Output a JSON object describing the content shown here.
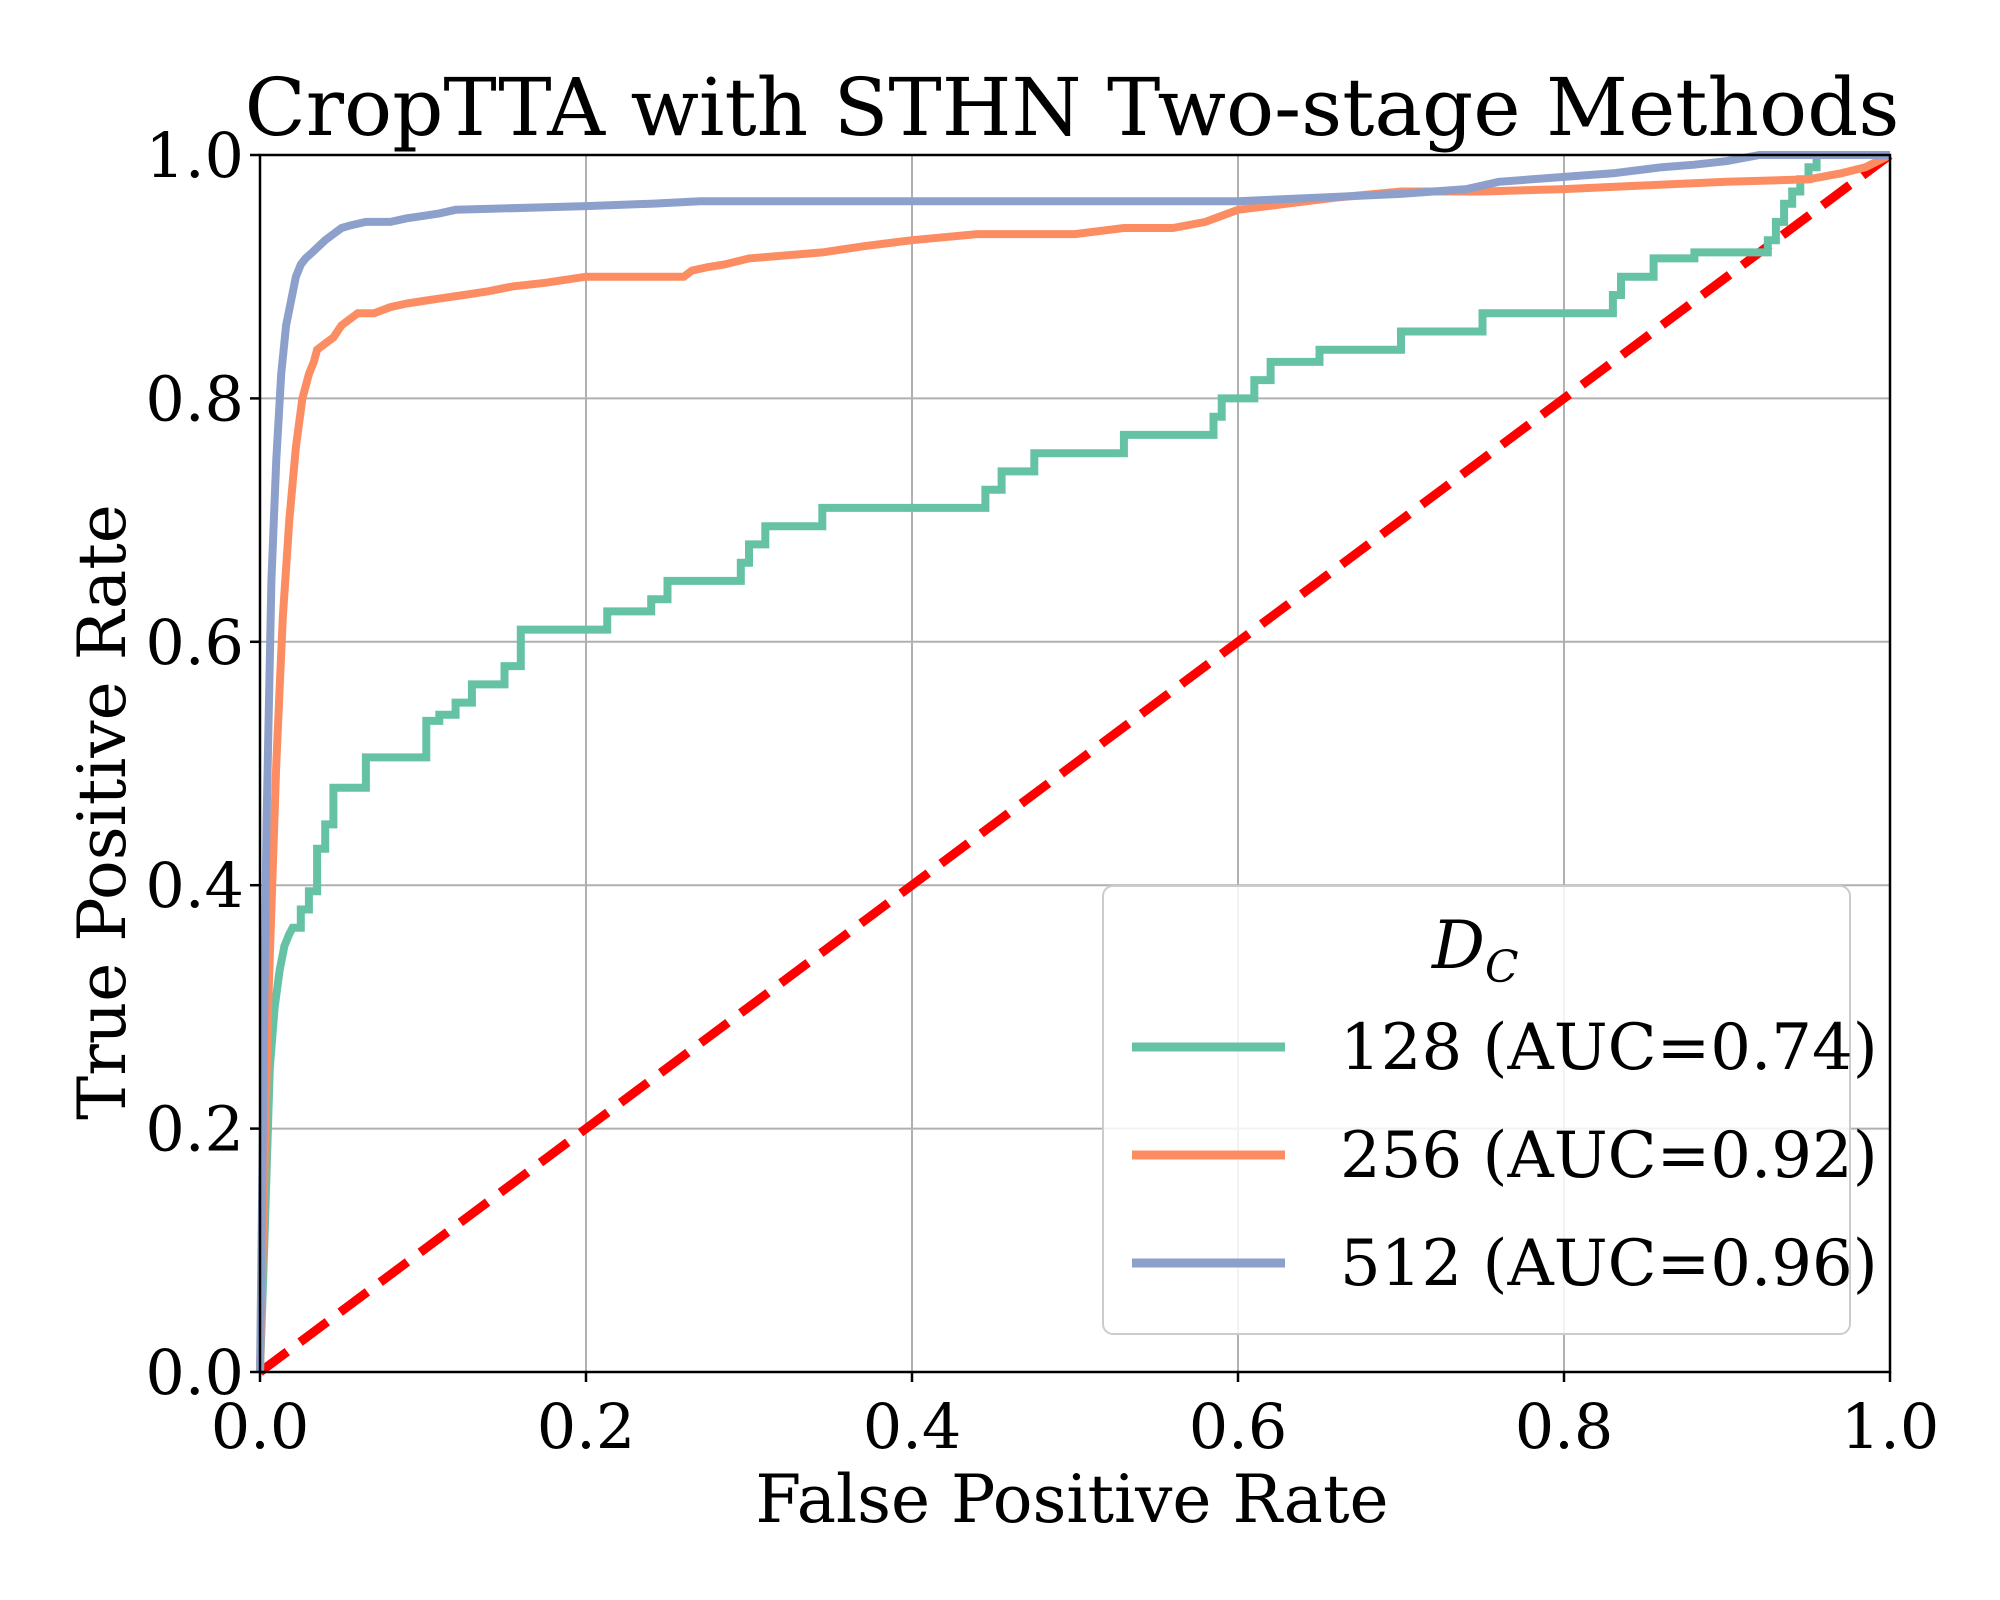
{
  "chart_data": {
    "type": "line",
    "title": "CropTTA with STHN Two-stage Methods",
    "xlabel": "False Positive Rate",
    "ylabel": "True Positive Rate",
    "xlim": [
      0.0,
      1.0
    ],
    "ylim": [
      0.0,
      1.0
    ],
    "xticks": [
      "0.0",
      "0.2",
      "0.4",
      "0.6",
      "0.8",
      "1.0"
    ],
    "yticks": [
      "0.0",
      "0.2",
      "0.4",
      "0.6",
      "0.8",
      "1.0"
    ],
    "grid": true,
    "legend": {
      "title_main": "D",
      "title_sub": "C",
      "placement": "lower-right"
    },
    "series": [
      {
        "name": "128 (AUC=0.74)",
        "color": "#66c2a5",
        "x": [
          0.0,
          0.003,
          0.006,
          0.009,
          0.012,
          0.015,
          0.018,
          0.02,
          0.025,
          0.025,
          0.03,
          0.03,
          0.035,
          0.035,
          0.04,
          0.04,
          0.045,
          0.045,
          0.065,
          0.065,
          0.102,
          0.102,
          0.11,
          0.11,
          0.12,
          0.12,
          0.13,
          0.13,
          0.15,
          0.15,
          0.16,
          0.16,
          0.213,
          0.213,
          0.24,
          0.24,
          0.25,
          0.25,
          0.295,
          0.295,
          0.3,
          0.3,
          0.31,
          0.31,
          0.345,
          0.345,
          0.445,
          0.445,
          0.455,
          0.455,
          0.475,
          0.475,
          0.53,
          0.53,
          0.585,
          0.585,
          0.59,
          0.59,
          0.61,
          0.61,
          0.62,
          0.62,
          0.65,
          0.65,
          0.7,
          0.7,
          0.75,
          0.75,
          0.83,
          0.83,
          0.835,
          0.835,
          0.855,
          0.855,
          0.88,
          0.88,
          0.925,
          0.925,
          0.93,
          0.93,
          0.935,
          0.935,
          0.94,
          0.94,
          0.945,
          0.945,
          0.95,
          0.95,
          0.955,
          0.955,
          1.0
        ],
        "y": [
          0.0,
          0.12,
          0.25,
          0.3,
          0.33,
          0.35,
          0.36,
          0.365,
          0.365,
          0.38,
          0.38,
          0.395,
          0.395,
          0.43,
          0.43,
          0.45,
          0.45,
          0.48,
          0.48,
          0.505,
          0.505,
          0.535,
          0.535,
          0.54,
          0.54,
          0.55,
          0.55,
          0.565,
          0.565,
          0.58,
          0.58,
          0.61,
          0.61,
          0.625,
          0.625,
          0.635,
          0.635,
          0.65,
          0.65,
          0.665,
          0.665,
          0.68,
          0.68,
          0.695,
          0.695,
          0.71,
          0.71,
          0.725,
          0.725,
          0.74,
          0.74,
          0.755,
          0.755,
          0.77,
          0.77,
          0.785,
          0.785,
          0.8,
          0.8,
          0.815,
          0.815,
          0.83,
          0.83,
          0.84,
          0.84,
          0.855,
          0.855,
          0.87,
          0.87,
          0.885,
          0.885,
          0.9,
          0.9,
          0.915,
          0.915,
          0.92,
          0.92,
          0.93,
          0.93,
          0.945,
          0.945,
          0.96,
          0.96,
          0.97,
          0.97,
          0.98,
          0.98,
          0.99,
          0.99,
          1.0,
          1.0
        ]
      },
      {
        "name": "256 (AUC=0.92)",
        "color": "#fc8d62",
        "x": [
          0.0,
          0.005,
          0.01,
          0.014,
          0.018,
          0.022,
          0.026,
          0.03,
          0.033,
          0.035,
          0.04,
          0.045,
          0.05,
          0.055,
          0.06,
          0.07,
          0.08,
          0.09,
          0.1,
          0.11,
          0.125,
          0.14,
          0.155,
          0.175,
          0.2,
          0.225,
          0.26,
          0.265,
          0.275,
          0.285,
          0.3,
          0.345,
          0.37,
          0.4,
          0.44,
          0.5,
          0.53,
          0.56,
          0.58,
          0.6,
          0.63,
          0.66,
          0.7,
          0.75,
          0.8,
          0.85,
          0.9,
          0.95,
          0.97,
          0.985,
          1.0
        ],
        "y": [
          0.0,
          0.3,
          0.5,
          0.62,
          0.7,
          0.76,
          0.8,
          0.82,
          0.83,
          0.84,
          0.845,
          0.85,
          0.86,
          0.865,
          0.87,
          0.87,
          0.875,
          0.878,
          0.88,
          0.882,
          0.885,
          0.888,
          0.892,
          0.895,
          0.9,
          0.9,
          0.9,
          0.905,
          0.908,
          0.91,
          0.915,
          0.92,
          0.925,
          0.93,
          0.935,
          0.935,
          0.94,
          0.94,
          0.945,
          0.955,
          0.96,
          0.965,
          0.97,
          0.97,
          0.972,
          0.975,
          0.978,
          0.98,
          0.985,
          0.99,
          1.0
        ]
      },
      {
        "name": "512 (AUC=0.96)",
        "color": "#8da0cb",
        "x": [
          0.0,
          0.004,
          0.007,
          0.01,
          0.013,
          0.016,
          0.019,
          0.022,
          0.025,
          0.028,
          0.032,
          0.036,
          0.04,
          0.045,
          0.05,
          0.055,
          0.065,
          0.08,
          0.09,
          0.1,
          0.11,
          0.12,
          0.2,
          0.24,
          0.27,
          0.4,
          0.55,
          0.6,
          0.65,
          0.7,
          0.74,
          0.76,
          0.8,
          0.83,
          0.86,
          0.88,
          0.9,
          0.92,
          1.0
        ],
        "y": [
          0.0,
          0.45,
          0.65,
          0.75,
          0.82,
          0.86,
          0.88,
          0.9,
          0.91,
          0.915,
          0.92,
          0.925,
          0.93,
          0.935,
          0.94,
          0.942,
          0.945,
          0.945,
          0.948,
          0.95,
          0.952,
          0.955,
          0.958,
          0.96,
          0.962,
          0.962,
          0.962,
          0.962,
          0.965,
          0.968,
          0.972,
          0.978,
          0.982,
          0.985,
          0.99,
          0.992,
          0.995,
          1.0,
          1.0
        ]
      }
    ],
    "reference_line": {
      "x": [
        0.0,
        1.0
      ],
      "y": [
        0.0,
        1.0
      ],
      "color": "#ff0000",
      "style": "dashed"
    }
  }
}
